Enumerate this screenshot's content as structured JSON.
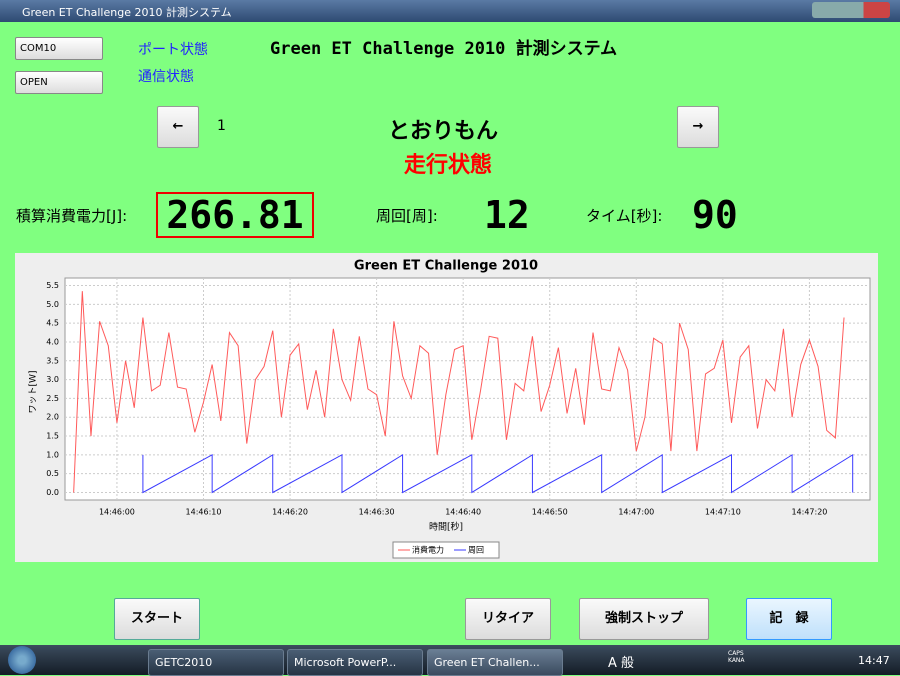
{
  "window": {
    "title": "Green ET Challenge 2010 計測システム"
  },
  "controls": {
    "port_combo": "COM10",
    "mode_combo": "OPEN",
    "port_status": "ポート状態",
    "comm_status": "通信状態"
  },
  "header": {
    "title": "Green ET Challenge 2010 計測システム",
    "prev": "←",
    "index": "1",
    "team": "とおりもん",
    "next": "→",
    "state": "走行状態"
  },
  "stats": {
    "energy_label": "積算消費電力[J]:",
    "energy": "266.81",
    "laps_label": "周回[周]:",
    "laps": "12",
    "time_label": "タイム[秒]:",
    "time": "90"
  },
  "chart_data": {
    "type": "line",
    "title": "Green ET Challenge 2010",
    "x_label": "時間[秒]",
    "y_label": "ワット[W]",
    "xlim": [
      "14:45:54",
      "14:47:27"
    ],
    "xticks": [
      "14:46:00",
      "14:46:10",
      "14:46:20",
      "14:46:30",
      "14:46:40",
      "14:46:50",
      "14:47:00",
      "14:47:10",
      "14:47:20"
    ],
    "ylim": [
      -0.2,
      5.7
    ],
    "yticks": [
      {
        "value": 0,
        "label": "0.0"
      },
      {
        "value": 0.5,
        "label": "0.5"
      },
      {
        "value": 1,
        "label": "1.0"
      },
      {
        "value": 1.5,
        "label": "1.5"
      },
      {
        "value": 2,
        "label": "2.0"
      },
      {
        "value": 2.5,
        "label": "2.5"
      },
      {
        "value": 3,
        "label": "3.0"
      },
      {
        "value": 3.5,
        "label": "3.5"
      },
      {
        "value": 4,
        "label": "4.0"
      },
      {
        "value": 4.5,
        "label": "4.5"
      },
      {
        "value": 5,
        "label": "5.0"
      },
      {
        "value": 5.5,
        "label": "5.5"
      }
    ],
    "grid": true,
    "legend": "bottom",
    "series": [
      {
        "name": "消費電力",
        "color": "#ff5a5a",
        "x": [
          "14:45:55",
          "14:45:56",
          "14:45:57",
          "14:45:58",
          "14:45:59",
          "14:46:00",
          "14:46:01",
          "14:46:02",
          "14:46:03",
          "14:46:04",
          "14:46:05",
          "14:46:06",
          "14:46:07",
          "14:46:08",
          "14:46:09",
          "14:46:10",
          "14:46:11",
          "14:46:12",
          "14:46:13",
          "14:46:14",
          "14:46:15",
          "14:46:16",
          "14:46:17",
          "14:46:18",
          "14:46:19",
          "14:46:20",
          "14:46:21",
          "14:46:22",
          "14:46:23",
          "14:46:24",
          "14:46:25",
          "14:46:26",
          "14:46:27",
          "14:46:28",
          "14:46:29",
          "14:46:30",
          "14:46:31",
          "14:46:32",
          "14:46:33",
          "14:46:34",
          "14:46:35",
          "14:46:36",
          "14:46:37",
          "14:46:38",
          "14:46:39",
          "14:46:40",
          "14:46:41",
          "14:46:42",
          "14:46:43",
          "14:46:44",
          "14:46:45",
          "14:46:46",
          "14:46:47",
          "14:46:48",
          "14:46:49",
          "14:46:50",
          "14:46:51",
          "14:46:52",
          "14:46:53",
          "14:46:54",
          "14:46:55",
          "14:46:56",
          "14:46:57",
          "14:46:58",
          "14:46:59",
          "14:47:00",
          "14:47:01",
          "14:47:02",
          "14:47:03",
          "14:47:04",
          "14:47:05",
          "14:47:06",
          "14:47:07",
          "14:47:08",
          "14:47:09",
          "14:47:10",
          "14:47:11",
          "14:47:12",
          "14:47:13",
          "14:47:14",
          "14:47:15",
          "14:47:16",
          "14:47:17",
          "14:47:18",
          "14:47:19",
          "14:47:20",
          "14:47:21",
          "14:47:22",
          "14:47:23",
          "14:47:24"
        ],
        "values": [
          0,
          5.35,
          1.5,
          4.55,
          3.9,
          1.85,
          3.5,
          2.25,
          4.65,
          2.7,
          2.85,
          4.25,
          2.8,
          2.75,
          1.6,
          2.4,
          3.4,
          1.9,
          4.25,
          3.9,
          1.3,
          3,
          3.35,
          4.3,
          2,
          3.65,
          3.95,
          2.2,
          3.25,
          2,
          4.35,
          3,
          2.45,
          4.15,
          2.75,
          2.6,
          1.5,
          4.55,
          3.1,
          2.5,
          3.9,
          3.7,
          1,
          2.6,
          3.8,
          3.9,
          1.4,
          2.7,
          4.15,
          4.1,
          1.4,
          2.9,
          2.7,
          4.15,
          2.15,
          2.85,
          3.85,
          2.1,
          3.3,
          1.8,
          4.25,
          2.75,
          2.7,
          3.85,
          3.25,
          1.1,
          2,
          4.1,
          3.95,
          1.1,
          4.5,
          3.8,
          1.1,
          3.15,
          3.3,
          4.05,
          1.85,
          3.6,
          3.9,
          1.7,
          3,
          2.7,
          4.35,
          2,
          3.4,
          4.05,
          3.35,
          1.65,
          1.45,
          4.65
        ]
      },
      {
        "name": "周回",
        "color": "#3a3aff",
        "x": [
          "14:46:03",
          "14:46:03",
          "14:46:03",
          "14:46:11",
          "14:46:11",
          "14:46:11",
          "14:46:18",
          "14:46:18",
          "14:46:18",
          "14:46:26",
          "14:46:26",
          "14:46:26",
          "14:46:33",
          "14:46:33",
          "14:46:33",
          "14:46:41",
          "14:46:41",
          "14:46:41",
          "14:46:48",
          "14:46:48",
          "14:46:48",
          "14:46:56",
          "14:46:56",
          "14:46:56",
          "14:47:03",
          "14:47:03",
          "14:47:03",
          "14:47:11",
          "14:47:11",
          "14:47:11",
          "14:47:18",
          "14:47:18",
          "14:47:18",
          "14:47:25",
          "14:47:25",
          "14:47:25"
        ],
        "values": [
          1,
          0,
          0,
          1,
          0,
          0,
          1,
          0,
          0,
          1,
          0,
          0,
          1,
          0,
          0,
          1,
          0,
          0,
          1,
          0,
          0,
          1,
          0,
          0,
          1,
          0,
          0,
          1,
          0,
          0,
          1,
          0,
          0,
          1,
          0,
          1
        ]
      }
    ]
  },
  "buttons": {
    "start": "スタート",
    "retire": "リタイア",
    "stop": "強制ストップ",
    "record": "記　録"
  },
  "taskbar": {
    "tasks": [
      "GETC2010",
      "Microsoft PowerP...",
      "Green ET Challen..."
    ],
    "ime": "A 般",
    "caps": "CAPS KANA",
    "clock": "14:47"
  }
}
